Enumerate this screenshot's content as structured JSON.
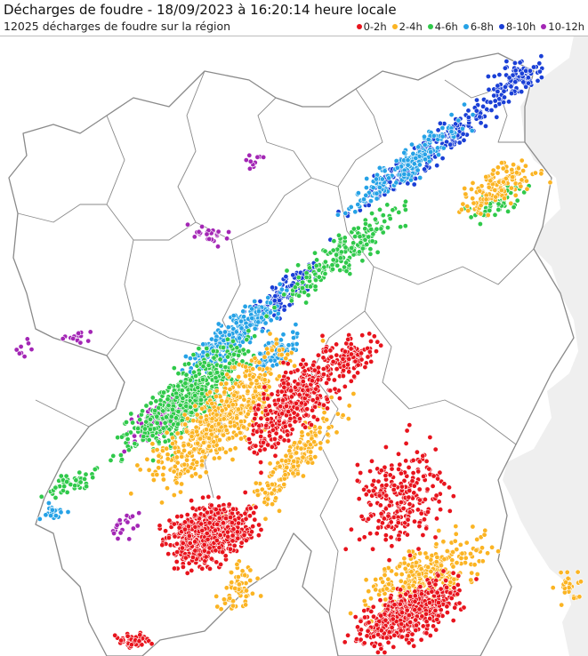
{
  "map": {
    "title": "Décharges de foudre - 18/09/2023 à 16:20:14 heure locale",
    "subtitle": "12025 décharges de foudre sur la région",
    "land_color": "#ffffff",
    "outside_color": "#efefef",
    "border_color": "#8a8a8a",
    "legend": [
      {
        "label": "0-2h",
        "color": "#e8141d"
      },
      {
        "label": "2-4h",
        "color": "#fbb423"
      },
      {
        "label": "4-6h",
        "color": "#2fc94a"
      },
      {
        "label": "6-8h",
        "color": "#26a2e6"
      },
      {
        "label": "8-10h",
        "color": "#1a3fd6"
      },
      {
        "label": "10-12h",
        "color": "#a326b5"
      }
    ]
  }
}
